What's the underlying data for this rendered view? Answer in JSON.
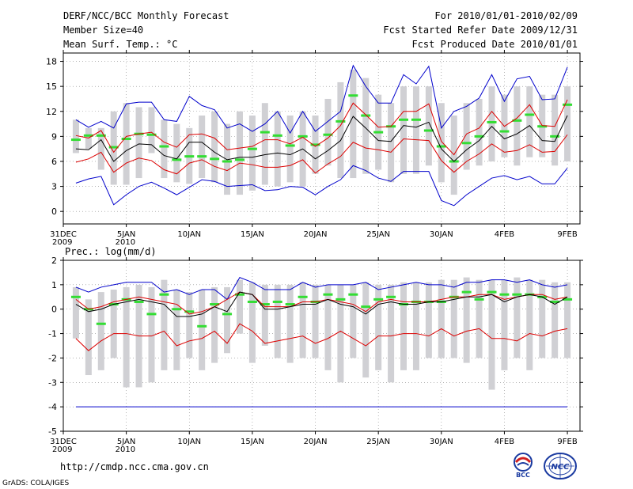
{
  "header": {
    "title": "DERF/NCC/BCC Monthly Forecast",
    "member": "Member Size=40",
    "variable": "Mean Surf. Temp.: °C",
    "period": "For 2010/01/01-2010/02/09",
    "started": "Fcst Started Refer Date 2009/12/31",
    "produced": "Fcst Produced Date 2010/01/01"
  },
  "footer": {
    "url": "http://cmdp.ncc.cma.gov.cn",
    "credit": "GrADS: COLA/IGES",
    "logo_bcc": "BCC",
    "logo_ncc": "NCC"
  },
  "colors": {
    "envelope": "#0000cc",
    "spread": "#dd0000",
    "mean": "#000000",
    "median": "#33dd33",
    "box": "#d0d0d4",
    "grid": "#888888"
  },
  "chart_data": [
    {
      "type": "box",
      "title": "Mean Surf. Temp.: °C",
      "x_tick_labels": [
        "31DEC\n2009",
        "5JAN\n2010",
        "10JAN",
        "15JAN",
        "20JAN",
        "25JAN",
        "30JAN",
        "4FEB",
        "9FEB"
      ],
      "x_tick_days": [
        0,
        5,
        10,
        15,
        20,
        25,
        30,
        35,
        40
      ],
      "ylim": [
        -1.5,
        19
      ],
      "y_ticks": [
        0,
        3,
        6,
        9,
        12,
        15,
        18
      ],
      "x": [
        1,
        2,
        3,
        4,
        5,
        6,
        7,
        8,
        9,
        10,
        11,
        12,
        13,
        14,
        15,
        16,
        17,
        18,
        19,
        20,
        21,
        22,
        23,
        24,
        25,
        26,
        27,
        28,
        29,
        30,
        31,
        32,
        33,
        34,
        35,
        36,
        37,
        38,
        39,
        40
      ],
      "series": [
        {
          "name": "max",
          "values": [
            3.4,
            3.9,
            4.2,
            0.8,
            2.0,
            3.0,
            3.5,
            2.8,
            2.0,
            2.9,
            3.8,
            3.6,
            3.0,
            3.1,
            3.2,
            2.5,
            2.6,
            3.0,
            2.9,
            2.0,
            3.0,
            3.8,
            5.5,
            4.9,
            4.0,
            3.6,
            4.8,
            4.8,
            4.8,
            1.3,
            0.7,
            2.0,
            3.0,
            4.0,
            4.3,
            3.8,
            4.2,
            3.3,
            3.3,
            5.2
          ]
        },
        {
          "name": "max_upper",
          "values": [
            11.0,
            10.1,
            10.8,
            10.0,
            12.9,
            13.1,
            13.1,
            11.0,
            10.8,
            13.8,
            12.7,
            12.2,
            10.0,
            10.5,
            9.6,
            10.5,
            12.0,
            9.4,
            12.0,
            9.6,
            10.8,
            12.0,
            17.5,
            15.0,
            13.0,
            13.0,
            16.4,
            15.3,
            17.4,
            10.0,
            12.0,
            12.6,
            13.6,
            16.4,
            13.2,
            15.9,
            16.2,
            13.4,
            13.5,
            17.3
          ]
        },
        {
          "name": "spread_low",
          "values": [
            5.9,
            6.3,
            7.1,
            4.7,
            5.8,
            6.4,
            6.1,
            5.0,
            4.5,
            5.8,
            6.2,
            5.4,
            4.9,
            5.8,
            5.6,
            5.3,
            5.3,
            5.5,
            6.2,
            4.6,
            5.7,
            6.6,
            8.3,
            7.6,
            7.4,
            7.1,
            8.7,
            8.6,
            8.5,
            6.1,
            4.7,
            6.0,
            6.9,
            8.1,
            7.1,
            7.3,
            8.0,
            7.1,
            7.2,
            9.2
          ]
        },
        {
          "name": "spread_high",
          "values": [
            9.1,
            8.8,
            9.7,
            7.1,
            9.0,
            9.3,
            9.5,
            8.3,
            7.7,
            9.2,
            9.3,
            8.8,
            7.4,
            7.6,
            7.8,
            8.6,
            8.6,
            8.1,
            8.9,
            7.8,
            8.8,
            10.3,
            13.0,
            11.6,
            10.1,
            10.2,
            12.0,
            12.0,
            12.9,
            8.4,
            6.8,
            9.3,
            10.0,
            12.0,
            10.2,
            11.2,
            12.8,
            10.3,
            10.2,
            13.4
          ]
        },
        {
          "name": "ensemble_mean",
          "values": [
            7.5,
            7.4,
            8.6,
            6.0,
            7.3,
            8.1,
            8.0,
            6.7,
            6.3,
            8.3,
            8.3,
            7.1,
            6.2,
            6.5,
            6.5,
            6.8,
            7.0,
            6.8,
            7.5,
            6.3,
            7.3,
            8.5,
            11.4,
            10.0,
            8.5,
            8.4,
            10.3,
            10.1,
            10.7,
            7.5,
            6.0,
            7.4,
            8.5,
            10.2,
            8.7,
            9.3,
            10.3,
            8.5,
            8.4,
            11.5
          ]
        },
        {
          "name": "median",
          "values": [
            8.6,
            9.1,
            9.1,
            7.7,
            8.7,
            9.3,
            9.2,
            7.8,
            6.2,
            6.6,
            6.6,
            6.3,
            6.0,
            6.2,
            7.5,
            9.5,
            9.1,
            7.9,
            9.0,
            8.0,
            9.2,
            10.8,
            13.9,
            11.5,
            9.5,
            10.2,
            11.0,
            11.0,
            9.7,
            7.8,
            6.0,
            8.2,
            9.0,
            10.7,
            9.6,
            10.9,
            11.6,
            10.2,
            9.0,
            12.8
          ]
        },
        {
          "name": "box_low",
          "values": [
            7.0,
            7.5,
            5.0,
            3.2,
            3.2,
            4.0,
            7.0,
            4.0,
            3.5,
            3.3,
            4.0,
            3.5,
            2.0,
            2.0,
            2.5,
            3.2,
            3.0,
            3.5,
            3.0,
            4.5,
            5.5,
            4.0,
            4.0,
            4.5,
            5.0,
            3.5,
            4.5,
            4.5,
            5.5,
            3.5,
            2.0,
            5.0,
            5.5,
            6.0,
            6.5,
            5.5,
            6.5,
            6.5,
            5.5,
            6.0
          ]
        },
        {
          "name": "box_high",
          "values": [
            11.0,
            10.0,
            10.0,
            12.0,
            13.0,
            12.5,
            12.5,
            11.0,
            10.5,
            10.0,
            11.5,
            12.0,
            10.5,
            12.0,
            11.5,
            13.0,
            12.0,
            11.5,
            12.0,
            11.5,
            13.5,
            15.5,
            17.0,
            16.0,
            14.0,
            13.0,
            15.0,
            15.0,
            15.0,
            13.0,
            11.5,
            13.0,
            13.5,
            15.0,
            14.0,
            15.0,
            15.0,
            14.0,
            14.0,
            15.0
          ]
        }
      ]
    },
    {
      "type": "box",
      "title": "Prec.: log(mm/d)",
      "x_tick_labels": [
        "31DEC\n2009",
        "5JAN\n2010",
        "10JAN",
        "15JAN",
        "20JAN",
        "25JAN",
        "30JAN",
        "4FEB",
        "9FEB"
      ],
      "x_tick_days": [
        0,
        5,
        10,
        15,
        20,
        25,
        30,
        35,
        40
      ],
      "ylim": [
        -5,
        2
      ],
      "y_ticks": [
        -5,
        -4,
        -3,
        -2,
        -1,
        0,
        1,
        2
      ],
      "x": [
        1,
        2,
        3,
        4,
        5,
        6,
        7,
        8,
        9,
        10,
        11,
        12,
        13,
        14,
        15,
        16,
        17,
        18,
        19,
        20,
        21,
        22,
        23,
        24,
        25,
        26,
        27,
        28,
        29,
        30,
        31,
        32,
        33,
        34,
        35,
        36,
        37,
        38,
        39,
        40
      ],
      "series": [
        {
          "name": "max",
          "values": [
            0.9,
            0.7,
            0.9,
            1.0,
            1.1,
            1.1,
            1.1,
            0.7,
            0.8,
            0.6,
            0.8,
            0.8,
            0.4,
            1.3,
            1.1,
            0.8,
            0.8,
            0.8,
            1.1,
            0.9,
            1.0,
            1.0,
            1.0,
            1.1,
            0.8,
            0.9,
            1.0,
            1.1,
            1.0,
            1.0,
            0.9,
            1.1,
            1.1,
            1.2,
            1.2,
            1.1,
            1.2,
            1.0,
            0.9,
            1.0
          ]
        },
        {
          "name": "min",
          "values": [
            -4,
            -4,
            -4,
            -4,
            -4,
            -4,
            -4,
            -4,
            -4,
            -4,
            -4,
            -4,
            -4,
            -4,
            -4,
            -4,
            -4,
            -4,
            -4,
            -4,
            -4,
            -4,
            -4,
            -4,
            -4,
            -4,
            -4,
            -4,
            -4,
            -4,
            -4,
            -4,
            -4,
            -4,
            -4,
            -4,
            -4,
            -4,
            -4,
            -4
          ]
        },
        {
          "name": "spread_low",
          "values": [
            -1.2,
            -1.7,
            -1.3,
            -1.0,
            -1.0,
            -1.1,
            -1.1,
            -0.9,
            -1.5,
            -1.3,
            -1.2,
            -0.9,
            -1.4,
            -0.6,
            -0.9,
            -1.4,
            -1.3,
            -1.2,
            -1.1,
            -1.4,
            -1.2,
            -0.9,
            -1.2,
            -1.5,
            -1.1,
            -1.1,
            -1.0,
            -1.0,
            -1.1,
            -0.8,
            -1.1,
            -0.9,
            -0.8,
            -1.2,
            -1.2,
            -1.3,
            -1.0,
            -1.1,
            -0.9,
            -0.8
          ]
        },
        {
          "name": "spread_high",
          "values": [
            0.4,
            0.0,
            0.1,
            0.3,
            0.4,
            0.5,
            0.4,
            0.3,
            0.2,
            -0.2,
            -0.1,
            0.1,
            0.4,
            0.7,
            0.6,
            0.1,
            0.1,
            0.1,
            0.3,
            0.3,
            0.4,
            0.3,
            0.2,
            -0.1,
            0.3,
            0.4,
            0.3,
            0.3,
            0.3,
            0.4,
            0.5,
            0.5,
            0.6,
            0.6,
            0.4,
            0.5,
            0.6,
            0.6,
            0.4,
            0.5
          ]
        },
        {
          "name": "ensemble_mean",
          "values": [
            0.2,
            -0.1,
            0.0,
            0.2,
            0.3,
            0.4,
            0.3,
            0.2,
            -0.3,
            -0.3,
            -0.2,
            0.1,
            -0.1,
            0.7,
            0.6,
            0.0,
            0.0,
            0.1,
            0.2,
            0.2,
            0.4,
            0.2,
            0.1,
            -0.2,
            0.2,
            0.3,
            0.2,
            0.2,
            0.3,
            0.3,
            0.4,
            0.5,
            0.5,
            0.6,
            0.3,
            0.5,
            0.6,
            0.5,
            0.2,
            0.5
          ]
        },
        {
          "name": "median",
          "values": [
            0.5,
            0.0,
            -0.6,
            0.2,
            0.4,
            0.3,
            -0.2,
            0.6,
            0.0,
            -0.1,
            -0.7,
            0.2,
            -0.2,
            0.6,
            0.3,
            0.2,
            0.3,
            0.2,
            0.5,
            0.3,
            0.6,
            0.4,
            0.6,
            0.1,
            0.4,
            0.5,
            0.2,
            0.3,
            0.3,
            0.3,
            0.5,
            0.7,
            0.4,
            0.7,
            0.6,
            0.6,
            0.6,
            0.5,
            0.3,
            0.4
          ]
        },
        {
          "name": "box_low",
          "values": [
            -1.2,
            -2.7,
            -2.5,
            -2.0,
            -3.2,
            -3.2,
            -3.0,
            -2.5,
            -2.5,
            -2.0,
            -2.5,
            -2.2,
            -1.8,
            -1.0,
            -2.2,
            -1.5,
            -2.0,
            -2.2,
            -2.0,
            -2.0,
            -2.5,
            -3.0,
            -2.0,
            -2.8,
            -2.5,
            -3.0,
            -2.5,
            -2.5,
            -2.0,
            -2.0,
            -2.0,
            -2.2,
            -2.0,
            -3.3,
            -2.5,
            -2.0,
            -2.5,
            -2.0,
            -2.0,
            -2.0
          ]
        },
        {
          "name": "box_high",
          "values": [
            0.9,
            0.4,
            0.7,
            0.8,
            0.9,
            1.0,
            0.9,
            1.2,
            0.8,
            0.7,
            0.8,
            0.9,
            0.9,
            1.2,
            1.1,
            1.0,
            1.0,
            1.0,
            1.1,
            1.0,
            1.0,
            1.0,
            1.0,
            1.1,
            1.0,
            1.0,
            1.1,
            1.1,
            1.1,
            1.2,
            1.2,
            1.3,
            1.2,
            1.2,
            1.2,
            1.3,
            1.2,
            1.2,
            1.1,
            1.1
          ]
        }
      ]
    }
  ]
}
